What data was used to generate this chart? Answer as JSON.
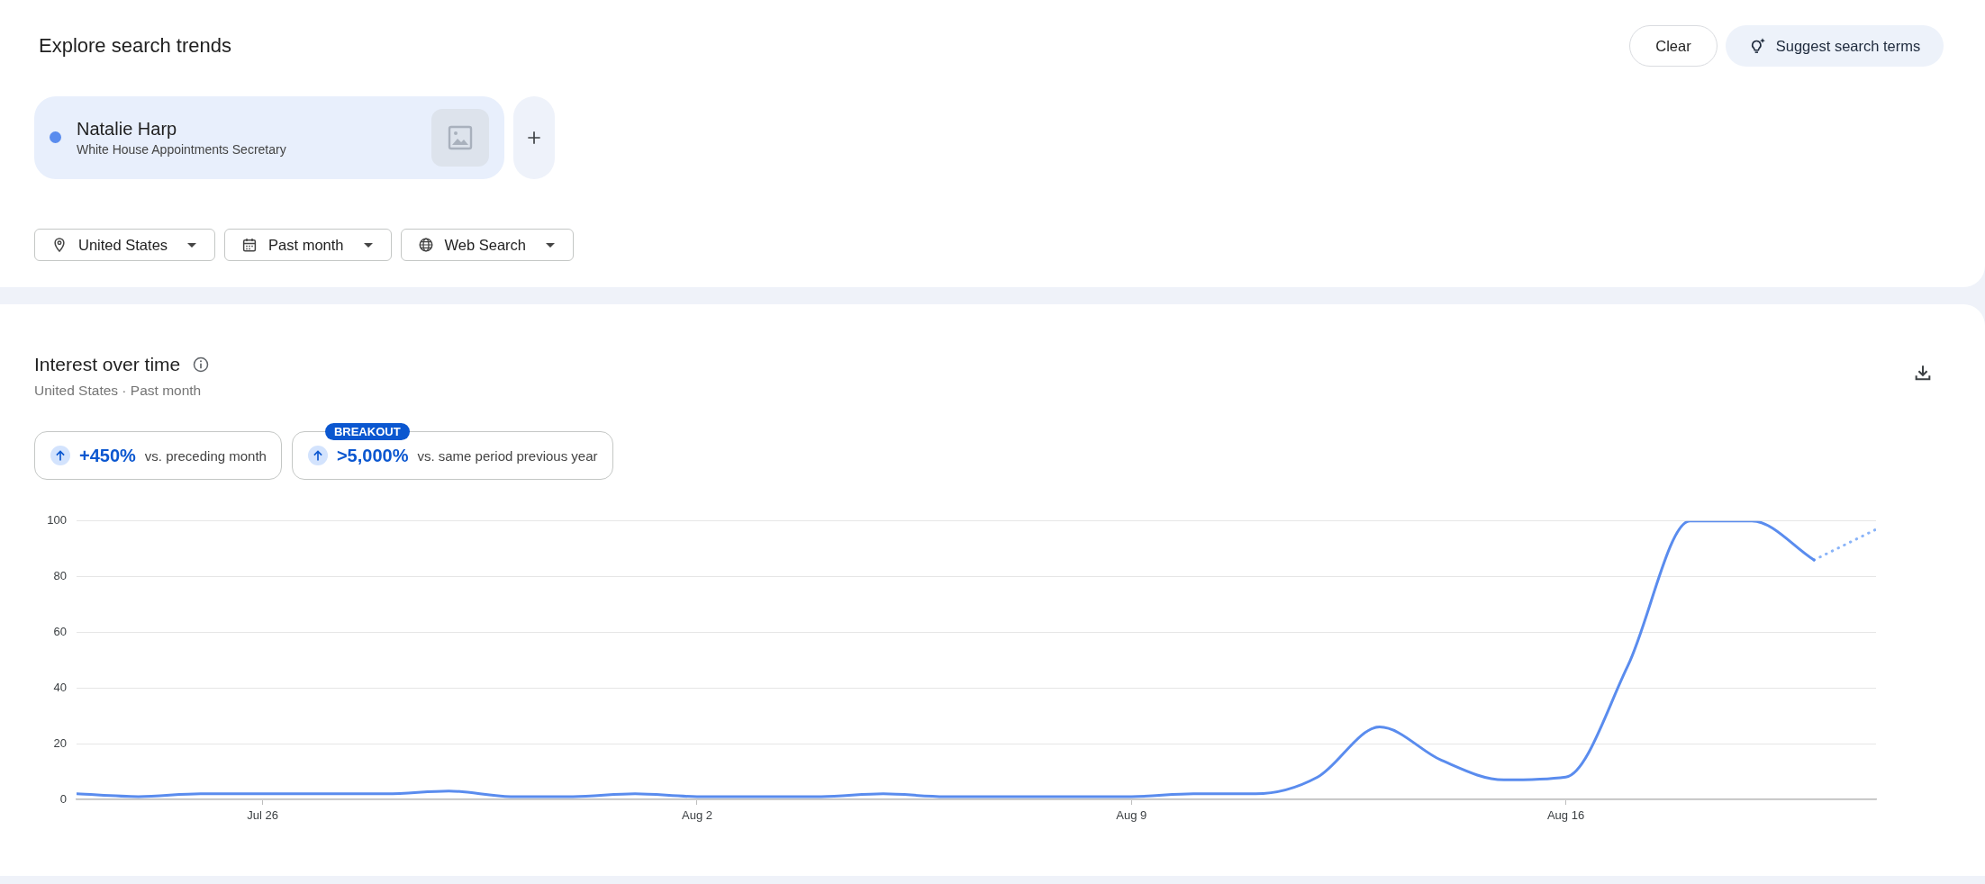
{
  "chart_data": {
    "type": "line",
    "title": "Interest over time",
    "subtitle": "United States · Past month",
    "annotations": [
      "Explore search trends",
      "White House Appointments Secretary",
      "United States",
      "Past month",
      "Web Search",
      "Clear",
      "Suggest search terms",
      "+450%",
      "vs. preceding month",
      "BREAKOUT",
      ">5,000%",
      "vs. same period previous year"
    ],
    "series": [
      {
        "name": "Natalie Harp",
        "color": "#5a8cee",
        "line_style": "solid",
        "x": [
          "--07-23",
          "--07-24",
          "--07-25",
          "--07-26",
          "--07-27",
          "--07-28",
          "--07-29",
          "--07-30",
          "--07-31",
          "--08-01",
          "--08-02",
          "--08-03",
          "--08-04",
          "--08-05",
          "--08-06",
          "--08-07",
          "--08-08",
          "--08-09",
          "--08-10",
          "--08-11",
          "--08-12",
          "--08-13",
          "--08-14",
          "--08-15",
          "--08-16",
          "--08-17",
          "--08-18",
          "--08-19",
          "--08-20"
        ],
        "values": [
          2,
          1,
          2,
          2,
          2,
          2,
          3,
          1,
          1,
          2,
          1,
          1,
          1,
          2,
          1,
          1,
          1,
          1,
          2,
          2,
          8,
          26,
          14,
          7,
          8,
          48,
          100,
          100,
          86
        ]
      },
      {
        "color": "#8ab4f8",
        "line_style": "dotted",
        "x": [
          "--08-20",
          "--08-21"
        ],
        "values": [
          86,
          97
        ]
      }
    ],
    "xlim": [
      "--07-23",
      "--08-21"
    ],
    "xticks": [
      {
        "value": "--07-26",
        "label": "Jul 26"
      },
      {
        "value": "--08-02",
        "label": "Aug 2"
      },
      {
        "value": "--08-09",
        "label": "Aug 9"
      },
      {
        "value": "--08-16",
        "label": "Aug 16"
      }
    ],
    "ylim": [
      0,
      100
    ],
    "yticks": [
      0,
      20,
      40,
      60,
      80,
      100
    ],
    "grid": "y",
    "legend": "top left"
  }
}
